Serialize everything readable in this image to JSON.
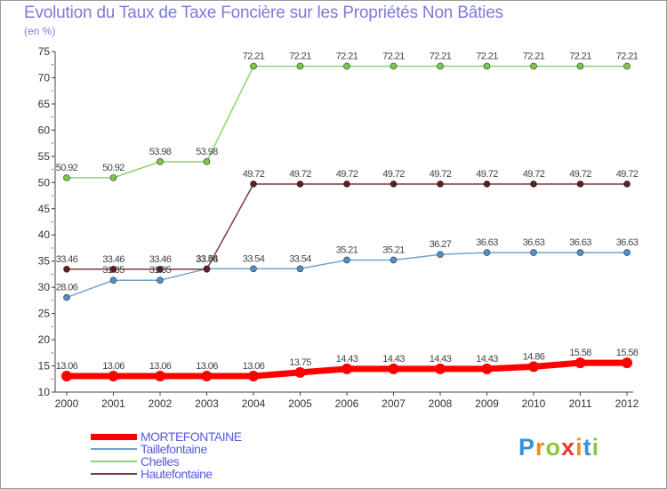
{
  "title": "Evolution du Taux de Taxe Foncière sur les Propriétés Non Bâties",
  "unit_label": "(en %)",
  "logo": {
    "letters": [
      "P",
      "r",
      "o",
      "x",
      "i",
      "t",
      "i"
    ],
    "colors": [
      "#3b8fd9",
      "#f08c1c",
      "#8cc63f",
      "#e43b2c",
      "#f08c1c",
      "#3b8fd9",
      "#8cc63f"
    ]
  },
  "chart_data": {
    "type": "line",
    "title": "Evolution du Taux de Taxe Foncière sur les Propriétés Non Bâties",
    "ylabel": "(en %)",
    "xlabel": "",
    "x": [
      "2000",
      "2001",
      "2002",
      "2003",
      "2004",
      "2005",
      "2006",
      "2007",
      "2008",
      "2009",
      "2010",
      "2011",
      "2012"
    ],
    "ylim": [
      10,
      75
    ],
    "yticks": [
      10,
      15,
      20,
      25,
      30,
      35,
      40,
      45,
      50,
      55,
      60,
      65,
      70,
      75
    ],
    "grid": false,
    "legend_position": "bottom-left",
    "series": [
      {
        "name": "MORTEFONTAINE",
        "color": "#ff0000",
        "marker_color": "#ff0000",
        "values": [
          13.06,
          13.06,
          13.06,
          13.06,
          13.06,
          13.75,
          14.43,
          14.43,
          14.43,
          14.43,
          14.86,
          15.58,
          15.58
        ],
        "labels": [
          "13.06",
          "13.06",
          "13.06",
          "13.06",
          "13.06",
          "13.75",
          "14.43",
          "14.43",
          "14.43",
          "14.43",
          "14.86",
          "15.58",
          "15.58"
        ]
      },
      {
        "name": "Taillefontaine",
        "color": "#6fa3d0",
        "marker_color": "#4f8fcb",
        "values": [
          28.06,
          31.35,
          31.35,
          33.54,
          33.54,
          33.54,
          35.21,
          35.21,
          36.27,
          36.63,
          36.63,
          36.63,
          36.63
        ],
        "labels": [
          "28.06",
          "31.35",
          "31.35",
          "33.54",
          "33.54",
          "33.54",
          "35.21",
          "35.21",
          "36.27",
          "36.63",
          "36.63",
          "36.63",
          "36.63"
        ]
      },
      {
        "name": "Chelles",
        "color": "#8fd36a",
        "marker_color": "#7cc843",
        "values": [
          50.92,
          50.92,
          53.98,
          53.98,
          72.21,
          72.21,
          72.21,
          72.21,
          72.21,
          72.21,
          72.21,
          72.21,
          72.21
        ],
        "labels": [
          "50.92",
          "50.92",
          "53.98",
          "53.98",
          "72.21",
          "72.21",
          "72.21",
          "72.21",
          "72.21",
          "72.21",
          "72.21",
          "72.21",
          "72.21"
        ]
      },
      {
        "name": "Hautefontaine",
        "color": "#7b3b3b",
        "marker_color": "#5a1f1f",
        "values": [
          33.46,
          33.46,
          33.46,
          33.46,
          49.72,
          49.72,
          49.72,
          49.72,
          49.72,
          49.72,
          49.72,
          49.72,
          49.72
        ],
        "labels": [
          "33.46",
          "33.46",
          "33.46",
          "33.46",
          "49.72",
          "49.72",
          "49.72",
          "49.72",
          "49.72",
          "49.72",
          "49.72",
          "49.72",
          "49.72"
        ]
      }
    ]
  }
}
